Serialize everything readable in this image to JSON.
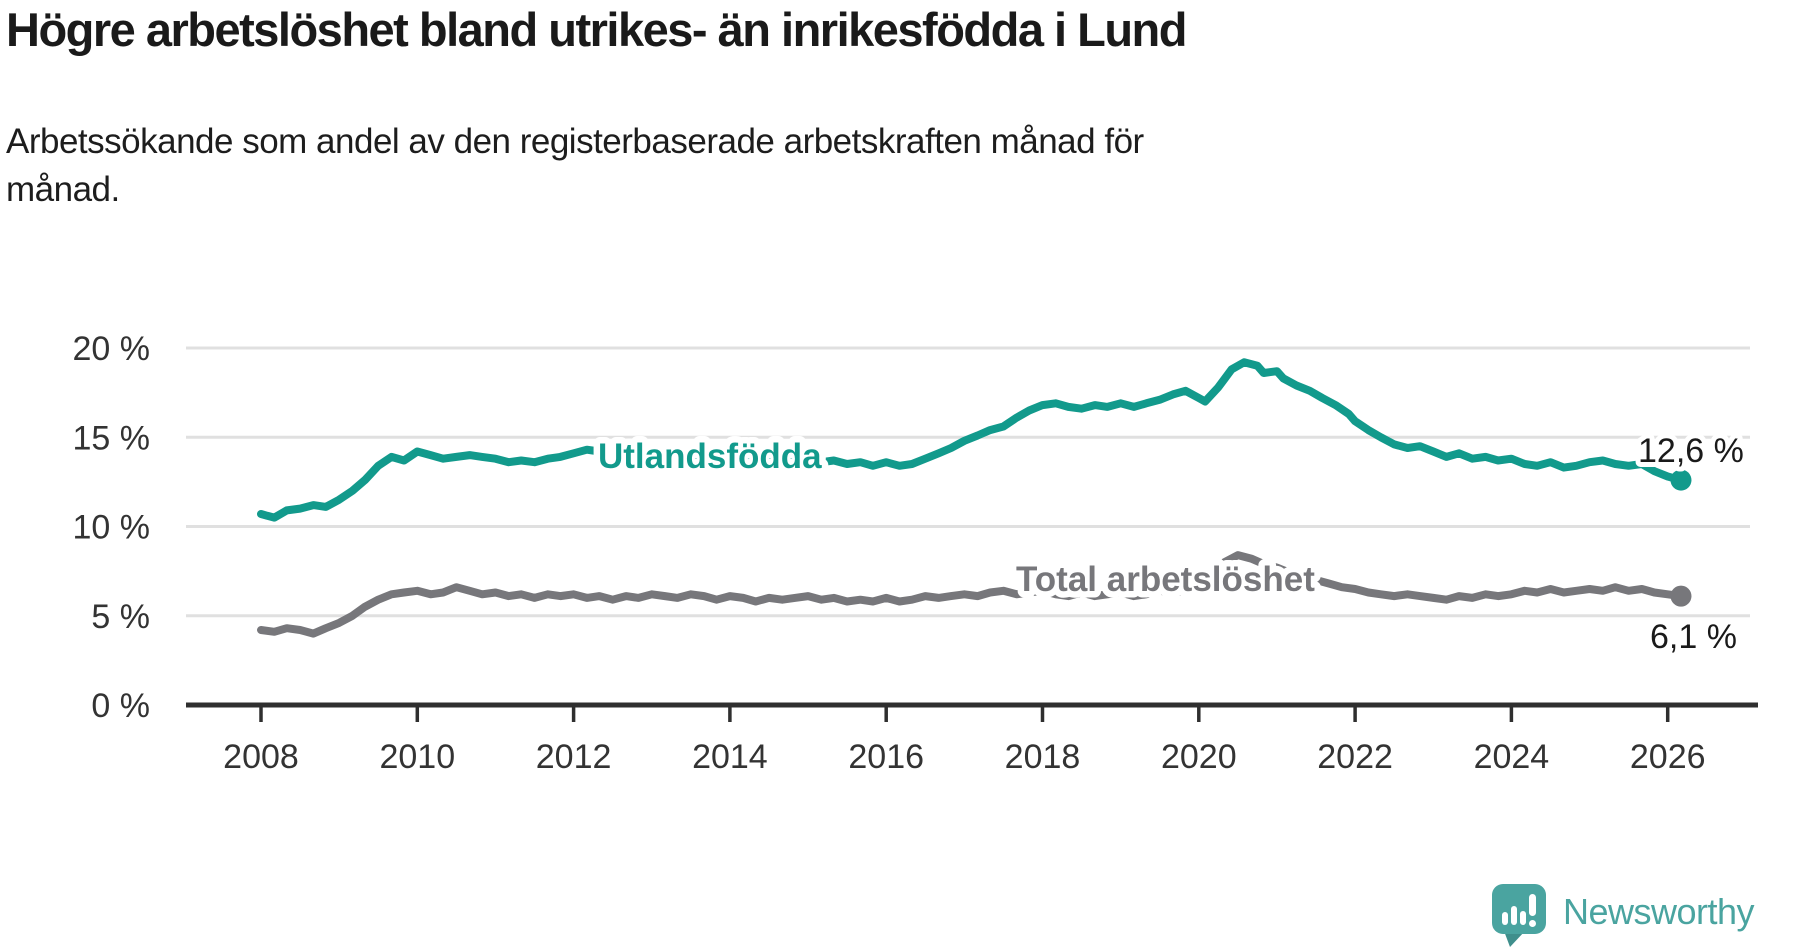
{
  "header": {
    "title": "Högre arbetslöshet bland utrikes- än inrikesfödda i Lund",
    "subtitle": "Arbetssökande som andel av den registerbaserade arbetskraften månad för\nmånad."
  },
  "footer": {
    "brand": "Newsworthy"
  },
  "colors": {
    "accent_teal": "#129a8c",
    "logo_teal": "#4aa4a0",
    "line_gray": "#77777b",
    "grid": "#e0e0e0",
    "axis": "#2f2f2f",
    "tick_text": "#333333",
    "text": "#1a1a1a"
  },
  "chart_data": {
    "type": "line",
    "title": "Högre arbetslöshet bland utrikes- än inrikesfödda i Lund",
    "subtitle": "Arbetssökande som andel av den registerbaserade arbetskraften månad för månad.",
    "grid": true,
    "legend": "inline-labels",
    "ylim": [
      0,
      20
    ],
    "xlim": [
      2007.6,
      2026.6
    ],
    "y_ticks": [
      {
        "label": "20 %",
        "value": 20
      },
      {
        "label": "15 %",
        "value": 15
      },
      {
        "label": "10 %",
        "value": 10
      },
      {
        "label": "5 %",
        "value": 5
      },
      {
        "label": "0 %",
        "value": 0
      }
    ],
    "x_ticks": [
      2008,
      2010,
      2012,
      2014,
      2016,
      2018,
      2020,
      2022,
      2024,
      2026
    ],
    "series": [
      {
        "name": "Utlandsfödda",
        "color": "#129a8c",
        "end_label": "12,6 %",
        "end_value": 12.6,
        "points": [
          [
            2008.0,
            10.7
          ],
          [
            2008.08,
            10.6
          ],
          [
            2008.17,
            10.5
          ],
          [
            2008.33,
            10.9
          ],
          [
            2008.5,
            11.0
          ],
          [
            2008.67,
            11.2
          ],
          [
            2008.83,
            11.1
          ],
          [
            2009.0,
            11.5
          ],
          [
            2009.17,
            12.0
          ],
          [
            2009.33,
            12.6
          ],
          [
            2009.5,
            13.4
          ],
          [
            2009.67,
            13.9
          ],
          [
            2009.83,
            13.7
          ],
          [
            2010.0,
            14.2
          ],
          [
            2010.17,
            14.0
          ],
          [
            2010.33,
            13.8
          ],
          [
            2010.5,
            13.9
          ],
          [
            2010.67,
            14.0
          ],
          [
            2010.83,
            13.9
          ],
          [
            2011.0,
            13.8
          ],
          [
            2011.17,
            13.6
          ],
          [
            2011.33,
            13.7
          ],
          [
            2011.5,
            13.6
          ],
          [
            2011.67,
            13.8
          ],
          [
            2011.83,
            13.9
          ],
          [
            2012.0,
            14.1
          ],
          [
            2012.17,
            14.3
          ],
          [
            2012.33,
            14.2
          ],
          [
            2012.5,
            14.0
          ],
          [
            2012.67,
            14.2
          ],
          [
            2012.83,
            13.9
          ],
          [
            2013.0,
            14.0
          ],
          [
            2013.17,
            14.1
          ],
          [
            2013.33,
            13.9
          ],
          [
            2013.5,
            13.8
          ],
          [
            2013.67,
            14.0
          ],
          [
            2013.83,
            13.9
          ],
          [
            2014.0,
            14.0
          ],
          [
            2014.17,
            13.8
          ],
          [
            2014.33,
            13.9
          ],
          [
            2014.5,
            13.7
          ],
          [
            2014.67,
            13.8
          ],
          [
            2014.83,
            13.6
          ],
          [
            2015.0,
            13.8
          ],
          [
            2015.17,
            13.6
          ],
          [
            2015.33,
            13.7
          ],
          [
            2015.5,
            13.5
          ],
          [
            2015.67,
            13.6
          ],
          [
            2015.83,
            13.4
          ],
          [
            2016.0,
            13.6
          ],
          [
            2016.17,
            13.4
          ],
          [
            2016.33,
            13.5
          ],
          [
            2016.5,
            13.8
          ],
          [
            2016.67,
            14.1
          ],
          [
            2016.83,
            14.4
          ],
          [
            2017.0,
            14.8
          ],
          [
            2017.17,
            15.1
          ],
          [
            2017.33,
            15.4
          ],
          [
            2017.5,
            15.6
          ],
          [
            2017.67,
            16.1
          ],
          [
            2017.83,
            16.5
          ],
          [
            2018.0,
            16.8
          ],
          [
            2018.17,
            16.9
          ],
          [
            2018.33,
            16.7
          ],
          [
            2018.5,
            16.6
          ],
          [
            2018.67,
            16.8
          ],
          [
            2018.83,
            16.7
          ],
          [
            2019.0,
            16.9
          ],
          [
            2019.17,
            16.7
          ],
          [
            2019.33,
            16.9
          ],
          [
            2019.5,
            17.1
          ],
          [
            2019.67,
            17.4
          ],
          [
            2019.83,
            17.6
          ],
          [
            2020.0,
            17.2
          ],
          [
            2020.08,
            17.0
          ],
          [
            2020.25,
            17.8
          ],
          [
            2020.42,
            18.8
          ],
          [
            2020.58,
            19.2
          ],
          [
            2020.75,
            19.0
          ],
          [
            2020.83,
            18.6
          ],
          [
            2021.0,
            18.7
          ],
          [
            2021.08,
            18.3
          ],
          [
            2021.25,
            17.9
          ],
          [
            2021.42,
            17.6
          ],
          [
            2021.58,
            17.2
          ],
          [
            2021.75,
            16.8
          ],
          [
            2021.92,
            16.3
          ],
          [
            2022.0,
            15.9
          ],
          [
            2022.17,
            15.4
          ],
          [
            2022.33,
            15.0
          ],
          [
            2022.5,
            14.6
          ],
          [
            2022.67,
            14.4
          ],
          [
            2022.83,
            14.5
          ],
          [
            2023.0,
            14.2
          ],
          [
            2023.17,
            13.9
          ],
          [
            2023.33,
            14.1
          ],
          [
            2023.5,
            13.8
          ],
          [
            2023.67,
            13.9
          ],
          [
            2023.83,
            13.7
          ],
          [
            2024.0,
            13.8
          ],
          [
            2024.17,
            13.5
          ],
          [
            2024.33,
            13.4
          ],
          [
            2024.5,
            13.6
          ],
          [
            2024.67,
            13.3
          ],
          [
            2024.83,
            13.4
          ],
          [
            2025.0,
            13.6
          ],
          [
            2025.17,
            13.7
          ],
          [
            2025.33,
            13.5
          ],
          [
            2025.5,
            13.4
          ],
          [
            2025.67,
            13.5
          ],
          [
            2025.83,
            13.1
          ],
          [
            2026.0,
            12.8
          ],
          [
            2026.17,
            12.6
          ]
        ]
      },
      {
        "name": "Total arbetslöshet",
        "color": "#77777b",
        "end_label": "6,1 %",
        "end_value": 6.1,
        "points": [
          [
            2008.0,
            4.2
          ],
          [
            2008.17,
            4.1
          ],
          [
            2008.33,
            4.3
          ],
          [
            2008.5,
            4.2
          ],
          [
            2008.67,
            4.0
          ],
          [
            2008.83,
            4.3
          ],
          [
            2009.0,
            4.6
          ],
          [
            2009.17,
            5.0
          ],
          [
            2009.33,
            5.5
          ],
          [
            2009.5,
            5.9
          ],
          [
            2009.67,
            6.2
          ],
          [
            2009.83,
            6.3
          ],
          [
            2010.0,
            6.4
          ],
          [
            2010.17,
            6.2
          ],
          [
            2010.33,
            6.3
          ],
          [
            2010.5,
            6.6
          ],
          [
            2010.67,
            6.4
          ],
          [
            2010.83,
            6.2
          ],
          [
            2011.0,
            6.3
          ],
          [
            2011.17,
            6.1
          ],
          [
            2011.33,
            6.2
          ],
          [
            2011.5,
            6.0
          ],
          [
            2011.67,
            6.2
          ],
          [
            2011.83,
            6.1
          ],
          [
            2012.0,
            6.2
          ],
          [
            2012.17,
            6.0
          ],
          [
            2012.33,
            6.1
          ],
          [
            2012.5,
            5.9
          ],
          [
            2012.67,
            6.1
          ],
          [
            2012.83,
            6.0
          ],
          [
            2013.0,
            6.2
          ],
          [
            2013.17,
            6.1
          ],
          [
            2013.33,
            6.0
          ],
          [
            2013.5,
            6.2
          ],
          [
            2013.67,
            6.1
          ],
          [
            2013.83,
            5.9
          ],
          [
            2014.0,
            6.1
          ],
          [
            2014.17,
            6.0
          ],
          [
            2014.33,
            5.8
          ],
          [
            2014.5,
            6.0
          ],
          [
            2014.67,
            5.9
          ],
          [
            2014.83,
            6.0
          ],
          [
            2015.0,
            6.1
          ],
          [
            2015.17,
            5.9
          ],
          [
            2015.33,
            6.0
          ],
          [
            2015.5,
            5.8
          ],
          [
            2015.67,
            5.9
          ],
          [
            2015.83,
            5.8
          ],
          [
            2016.0,
            6.0
          ],
          [
            2016.17,
            5.8
          ],
          [
            2016.33,
            5.9
          ],
          [
            2016.5,
            6.1
          ],
          [
            2016.67,
            6.0
          ],
          [
            2016.83,
            6.1
          ],
          [
            2017.0,
            6.2
          ],
          [
            2017.17,
            6.1
          ],
          [
            2017.33,
            6.3
          ],
          [
            2017.5,
            6.4
          ],
          [
            2017.67,
            6.2
          ],
          [
            2017.83,
            6.3
          ],
          [
            2018.0,
            6.4
          ],
          [
            2018.17,
            6.2
          ],
          [
            2018.33,
            6.1
          ],
          [
            2018.5,
            6.3
          ],
          [
            2018.67,
            6.1
          ],
          [
            2018.83,
            6.2
          ],
          [
            2019.0,
            6.3
          ],
          [
            2019.17,
            6.1
          ],
          [
            2019.33,
            6.2
          ],
          [
            2019.5,
            6.4
          ],
          [
            2019.67,
            6.3
          ],
          [
            2019.83,
            6.4
          ],
          [
            2020.0,
            6.5
          ],
          [
            2020.17,
            7.2
          ],
          [
            2020.33,
            8.0
          ],
          [
            2020.5,
            8.4
          ],
          [
            2020.67,
            8.2
          ],
          [
            2020.83,
            7.9
          ],
          [
            2021.0,
            7.7
          ],
          [
            2021.17,
            7.4
          ],
          [
            2021.33,
            7.2
          ],
          [
            2021.5,
            7.0
          ],
          [
            2021.67,
            6.8
          ],
          [
            2021.83,
            6.6
          ],
          [
            2022.0,
            6.5
          ],
          [
            2022.17,
            6.3
          ],
          [
            2022.33,
            6.2
          ],
          [
            2022.5,
            6.1
          ],
          [
            2022.67,
            6.2
          ],
          [
            2022.83,
            6.1
          ],
          [
            2023.0,
            6.0
          ],
          [
            2023.17,
            5.9
          ],
          [
            2023.33,
            6.1
          ],
          [
            2023.5,
            6.0
          ],
          [
            2023.67,
            6.2
          ],
          [
            2023.83,
            6.1
          ],
          [
            2024.0,
            6.2
          ],
          [
            2024.17,
            6.4
          ],
          [
            2024.33,
            6.3
          ],
          [
            2024.5,
            6.5
          ],
          [
            2024.67,
            6.3
          ],
          [
            2024.83,
            6.4
          ],
          [
            2025.0,
            6.5
          ],
          [
            2025.17,
            6.4
          ],
          [
            2025.33,
            6.6
          ],
          [
            2025.5,
            6.4
          ],
          [
            2025.67,
            6.5
          ],
          [
            2025.83,
            6.3
          ],
          [
            2026.0,
            6.2
          ],
          [
            2026.17,
            6.1
          ]
        ]
      }
    ]
  }
}
